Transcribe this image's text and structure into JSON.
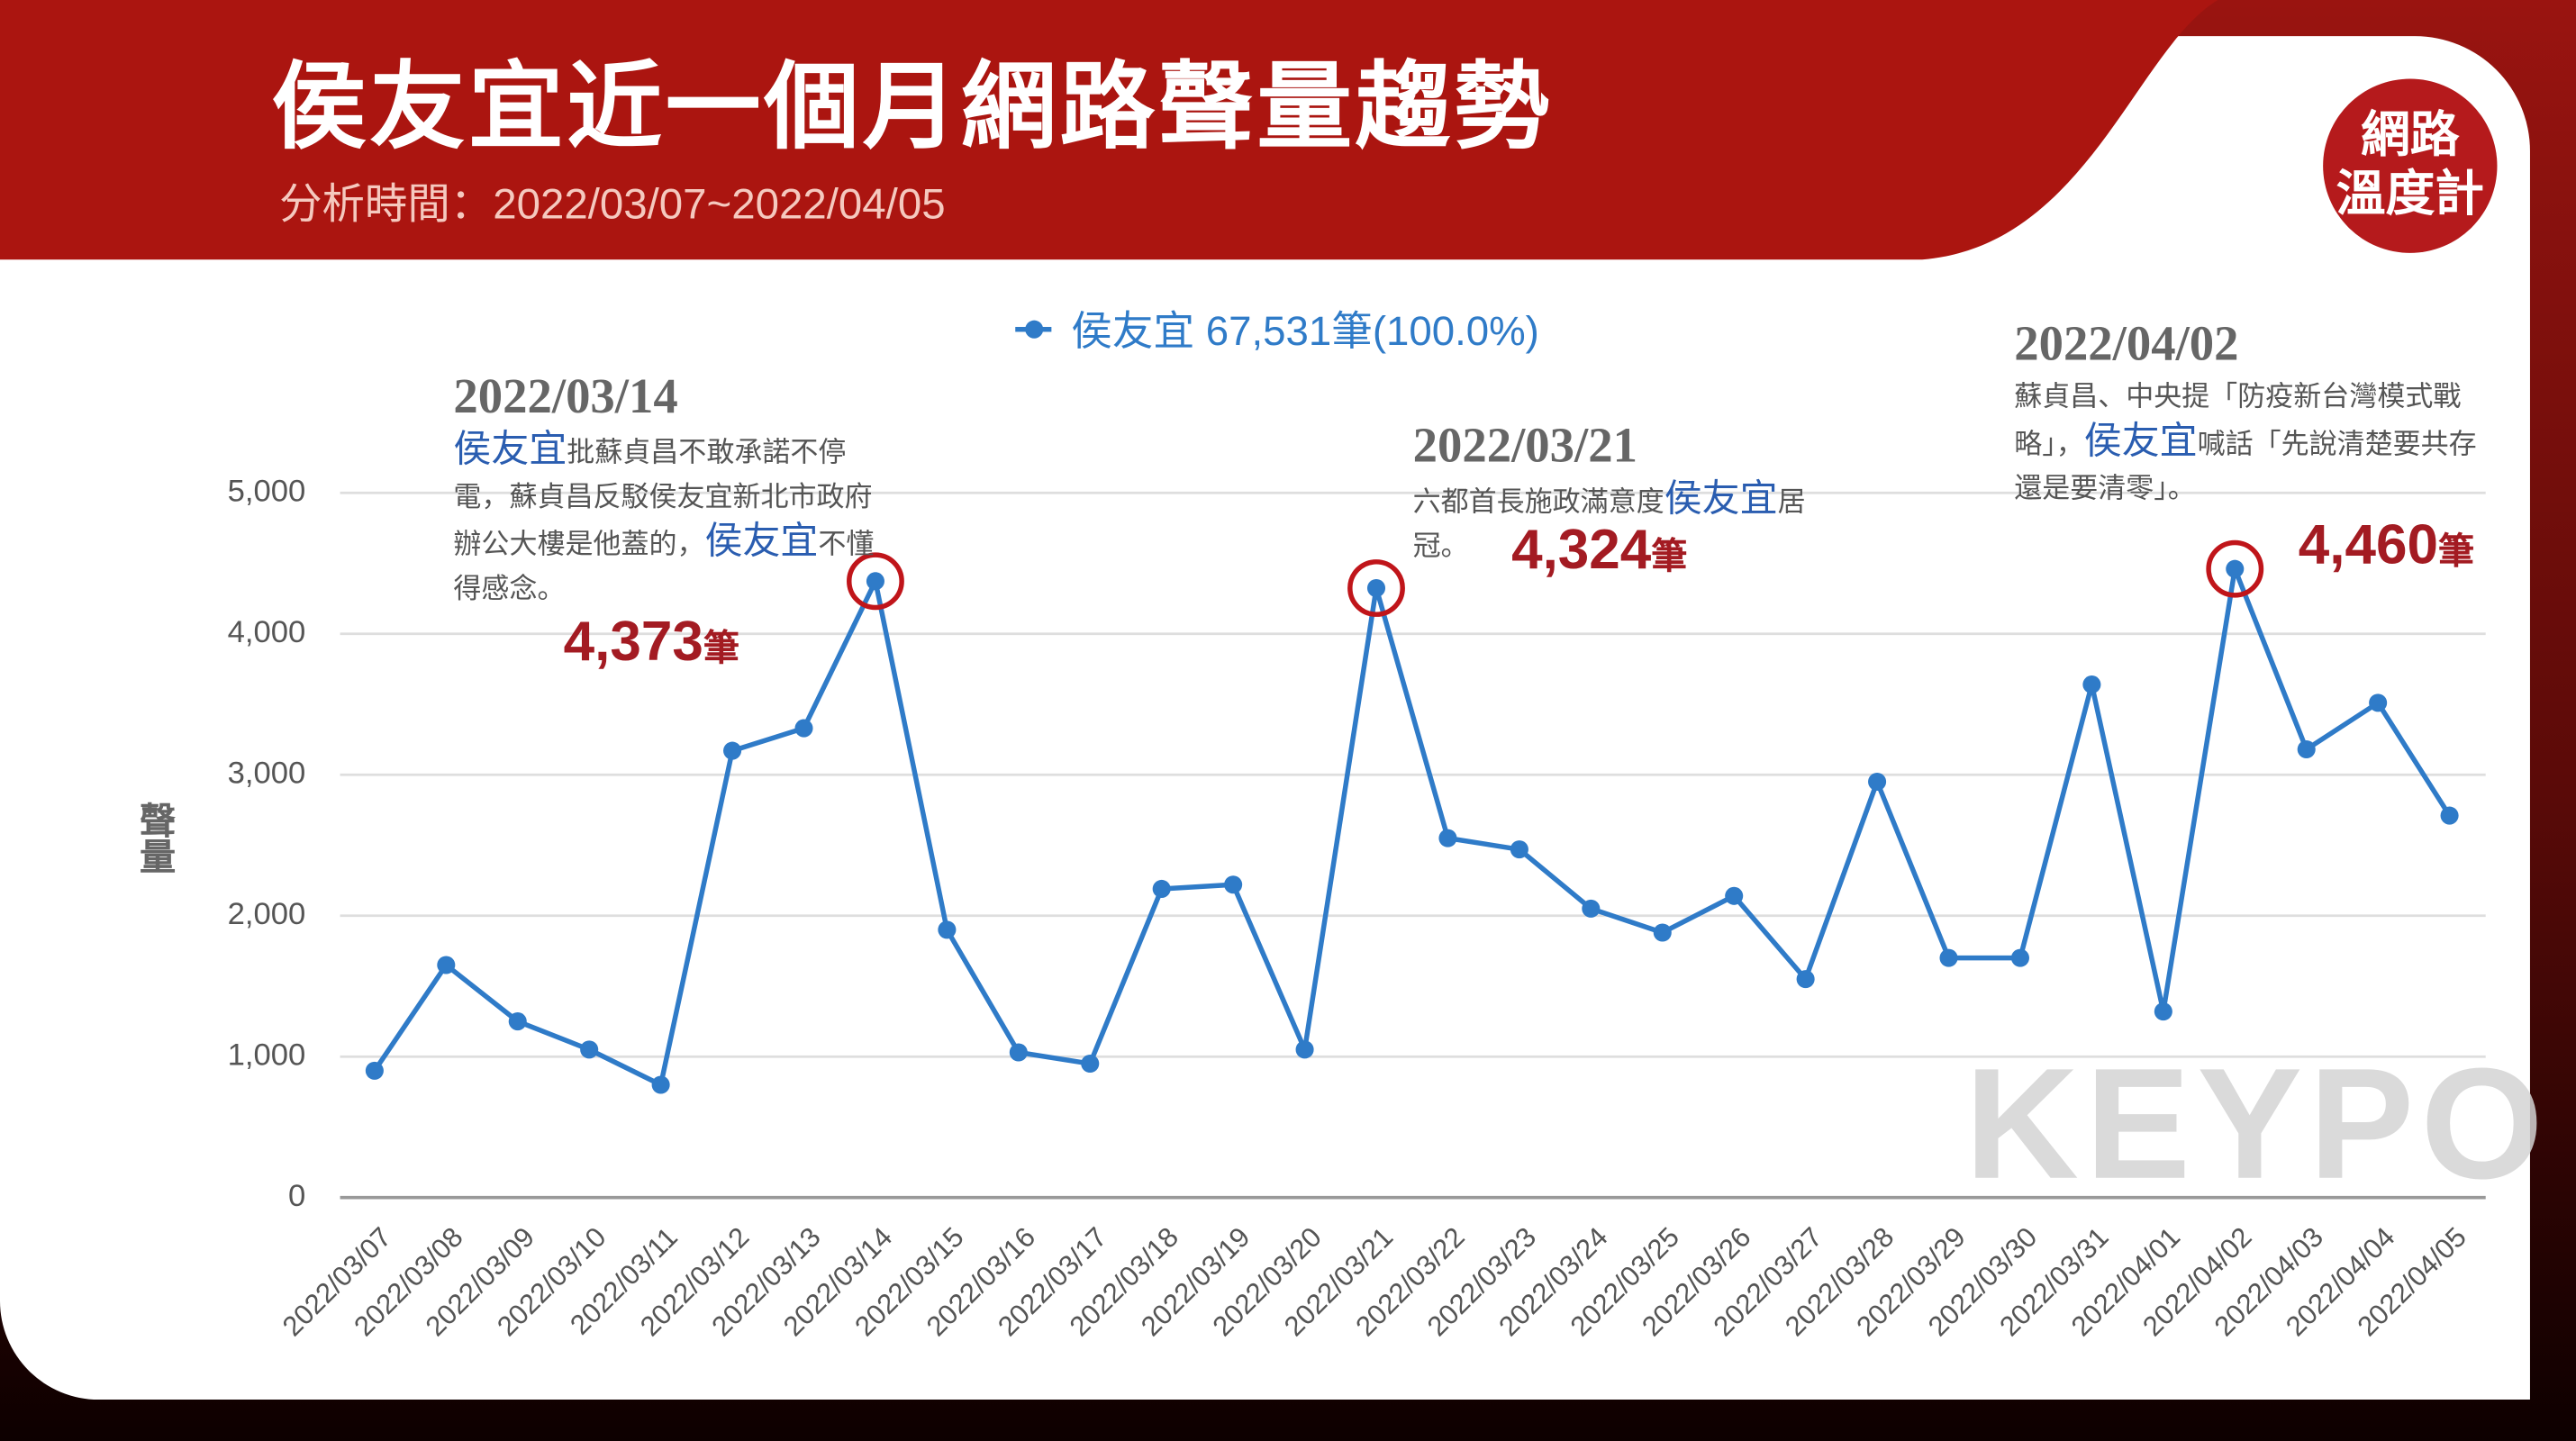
{
  "chart_data": {
    "type": "line",
    "title": "侯友宜近一個月網路聲量趨勢",
    "subtitle": "分析時間：2022/03/07~2022/04/05",
    "y_label": "聲量",
    "categories": [
      "2022/03/07",
      "2022/03/08",
      "2022/03/09",
      "2022/03/10",
      "2022/03/11",
      "2022/03/12",
      "2022/03/13",
      "2022/03/14",
      "2022/03/15",
      "2022/03/16",
      "2022/03/17",
      "2022/03/18",
      "2022/03/19",
      "2022/03/20",
      "2022/03/21",
      "2022/03/22",
      "2022/03/23",
      "2022/03/24",
      "2022/03/25",
      "2022/03/26",
      "2022/03/27",
      "2022/03/28",
      "2022/03/29",
      "2022/03/30",
      "2022/03/31",
      "2022/04/01",
      "2022/04/02",
      "2022/04/03",
      "2022/04/04",
      "2022/04/05"
    ],
    "series": [
      {
        "name": "侯友宜",
        "legend_detail": "67,531筆(100.0%)",
        "color": "#2f7bc8",
        "values": [
          900,
          1650,
          1250,
          1050,
          800,
          3170,
          3330,
          4373,
          1900,
          1030,
          950,
          2190,
          2220,
          1050,
          4324,
          2550,
          2470,
          2050,
          1880,
          2140,
          1550,
          2950,
          1700,
          1700,
          3640,
          1320,
          4460,
          3180,
          3510,
          2710
        ],
        "value_labels": [
          null,
          null,
          null,
          null,
          null,
          null,
          null,
          "4,373",
          null,
          null,
          null,
          null,
          null,
          null,
          "4,324",
          null,
          null,
          null,
          null,
          null,
          null,
          null,
          null,
          null,
          null,
          null,
          "4,460",
          null,
          null,
          null
        ]
      }
    ],
    "value_label_unit": "筆",
    "ylim": [
      0,
      5000
    ],
    "yticks": [
      0,
      {
        "value": 1000,
        "label": "1,000"
      },
      {
        "value": 2000,
        "label": "2,000"
      },
      {
        "value": 3000,
        "label": "3,000"
      },
      {
        "value": 4000,
        "label": "4,000"
      },
      {
        "value": 5000,
        "label": "5,000"
      }
    ],
    "grid": true,
    "highlight_color": "#c0151a",
    "annotations": [
      {
        "date": "2022/03/14",
        "text": [
          {
            "text": "侯友宜",
            "highlight": true
          },
          {
            "text": "批蘇貞昌不敢承諾不停電，蘇貞昌反駁侯友宜新北市政府辦公大樓是他蓋的，",
            "highlight": false
          },
          {
            "text": "侯友宜",
            "highlight": true
          },
          {
            "text": "不懂得感念。",
            "highlight": false
          }
        ]
      },
      {
        "date": "2022/03/21",
        "text": [
          {
            "text": "六都首長施政滿意度",
            "highlight": false
          },
          {
            "text": "侯友宜",
            "highlight": true
          },
          {
            "text": "居冠。",
            "highlight": false
          }
        ]
      },
      {
        "date": "2022/04/02",
        "text": [
          {
            "text": "蘇貞昌、中央提「防疫新台灣模式戰略」，",
            "highlight": false
          },
          {
            "text": "侯友宜",
            "highlight": true
          },
          {
            "text": "喊話「先說清楚要共存還是要清零」。",
            "highlight": false
          }
        ]
      }
    ]
  },
  "page": {
    "logo": [
      "網路",
      "溫度計"
    ],
    "watermark": "KEYPO"
  }
}
